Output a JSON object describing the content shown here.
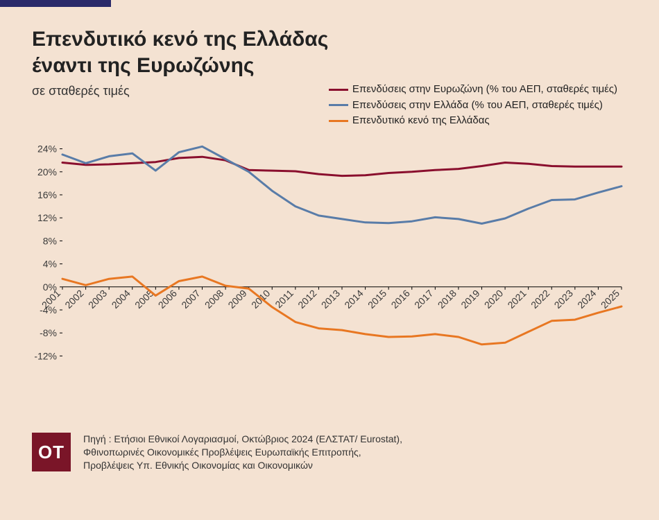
{
  "title_line1": "Επενδυτικό κενό της Ελλάδας",
  "title_line2": "έναντι της Ευρωζώνης",
  "subtitle": "σε σταθερές τιμές",
  "legend": [
    {
      "label": "Επενδύσεις στην Ευρωζώνη (% του ΑΕΠ, σταθερές τιμές)",
      "color": "#8a0f2e"
    },
    {
      "label": "Επενδύσεις στην Ελλάδα (% του ΑΕΠ, σταθερές τιμές)",
      "color": "#597ca8"
    },
    {
      "label": "Επενδυτικό κενό της Ελλάδας",
      "color": "#e87722"
    }
  ],
  "chart": {
    "type": "line",
    "background_color": "#f4e2d2",
    "axis_color": "#000000",
    "label_color": "#3a3a3a",
    "label_fontsize": 14,
    "ylim": [
      -14,
      26
    ],
    "ytick_values": [
      -12,
      -8,
      -4,
      0,
      4,
      8,
      12,
      16,
      20,
      24
    ],
    "ytick_labels": [
      "-12%",
      "-8%",
      "-4%",
      "0%",
      "4%",
      "8%",
      "12%",
      "16%",
      "20%",
      "24%"
    ],
    "x_categories": [
      "2001",
      "2002",
      "2003",
      "2004",
      "2005",
      "2006",
      "2007",
      "2008",
      "2009",
      "2010",
      "2011",
      "2012",
      "2013",
      "2014",
      "2015",
      "2016",
      "2017",
      "2018",
      "2019",
      "2020",
      "2021",
      "2022",
      "2023",
      "2024",
      "2025"
    ],
    "x_label_rotation": -45,
    "line_width": 3,
    "series": [
      {
        "name": "eurozone",
        "color": "#8a0f2e",
        "values": [
          21.6,
          21.2,
          21.3,
          21.5,
          21.7,
          22.4,
          22.6,
          22.0,
          20.3,
          20.2,
          20.1,
          19.6,
          19.3,
          19.4,
          19.8,
          20.0,
          20.3,
          20.5,
          21.0,
          21.6,
          21.4,
          21.0,
          20.9,
          20.9,
          20.9
        ]
      },
      {
        "name": "greece",
        "color": "#597ca8",
        "values": [
          23.0,
          21.5,
          22.7,
          23.2,
          20.2,
          23.4,
          24.4,
          22.2,
          20.0,
          16.7,
          14.0,
          12.4,
          11.8,
          11.2,
          11.1,
          11.4,
          12.1,
          11.8,
          11.0,
          11.9,
          13.6,
          15.1,
          15.2,
          16.4,
          17.5
        ]
      },
      {
        "name": "gap",
        "color": "#e87722",
        "values": [
          1.4,
          0.3,
          1.4,
          1.8,
          -1.5,
          1.0,
          1.8,
          0.2,
          -0.3,
          -3.5,
          -6.1,
          -7.2,
          -7.5,
          -8.2,
          -8.7,
          -8.6,
          -8.2,
          -8.7,
          -10.0,
          -9.7,
          -7.8,
          -5.9,
          -5.7,
          -4.5,
          -3.4
        ]
      }
    ]
  },
  "logo": "OT",
  "source_lines": [
    "Πηγή : Ετήσιοι Εθνικοί Λογαριασμοί, Οκτώβριος 2024 (ΕΛΣΤΑΤ/ Eurostat),",
    "Φθινοπωρινές Οικονομικές Προβλέψεις Ευρωπαϊκής Επιτροπής,",
    "Προβλέψεις Υπ. Εθνικής Οικονομίας και Οικονομικών"
  ]
}
